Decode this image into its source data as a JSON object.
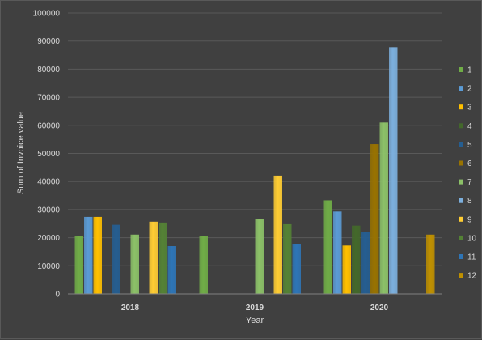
{
  "chart_data": {
    "type": "bar",
    "title": "",
    "xlabel": "Year",
    "ylabel": "Sum of Invoice value",
    "ylim": [
      0,
      100000
    ],
    "ytick_step": 10000,
    "grid": true,
    "legend_position": "right",
    "categories": [
      "2018",
      "2019",
      "2020"
    ],
    "series": [
      {
        "name": "1",
        "color": "#70ad47",
        "values": [
          20500,
          20500,
          33300
        ]
      },
      {
        "name": "2",
        "color": "#5b9bd5",
        "values": [
          27400,
          null,
          29300
        ]
      },
      {
        "name": "3",
        "color": "#ffc000",
        "values": [
          27400,
          null,
          17200
        ]
      },
      {
        "name": "4",
        "color": "#43682b",
        "values": [
          null,
          null,
          24300
        ]
      },
      {
        "name": "5",
        "color": "#255e91",
        "values": [
          24600,
          null,
          21900
        ]
      },
      {
        "name": "6",
        "color": "#997300",
        "values": [
          null,
          null,
          53300
        ]
      },
      {
        "name": "7",
        "color": "#8cc168",
        "values": [
          21100,
          26800,
          61000
        ]
      },
      {
        "name": "8",
        "color": "#7cafdd",
        "values": [
          null,
          null,
          87800
        ]
      },
      {
        "name": "9",
        "color": "#ffcd33",
        "values": [
          25700,
          42100,
          null
        ]
      },
      {
        "name": "10",
        "color": "#548235",
        "values": [
          25400,
          24800,
          null
        ]
      },
      {
        "name": "11",
        "color": "#2e75b6",
        "values": [
          17000,
          17600,
          null
        ]
      },
      {
        "name": "12",
        "color": "#bf9000",
        "values": [
          null,
          null,
          21100
        ]
      }
    ]
  }
}
